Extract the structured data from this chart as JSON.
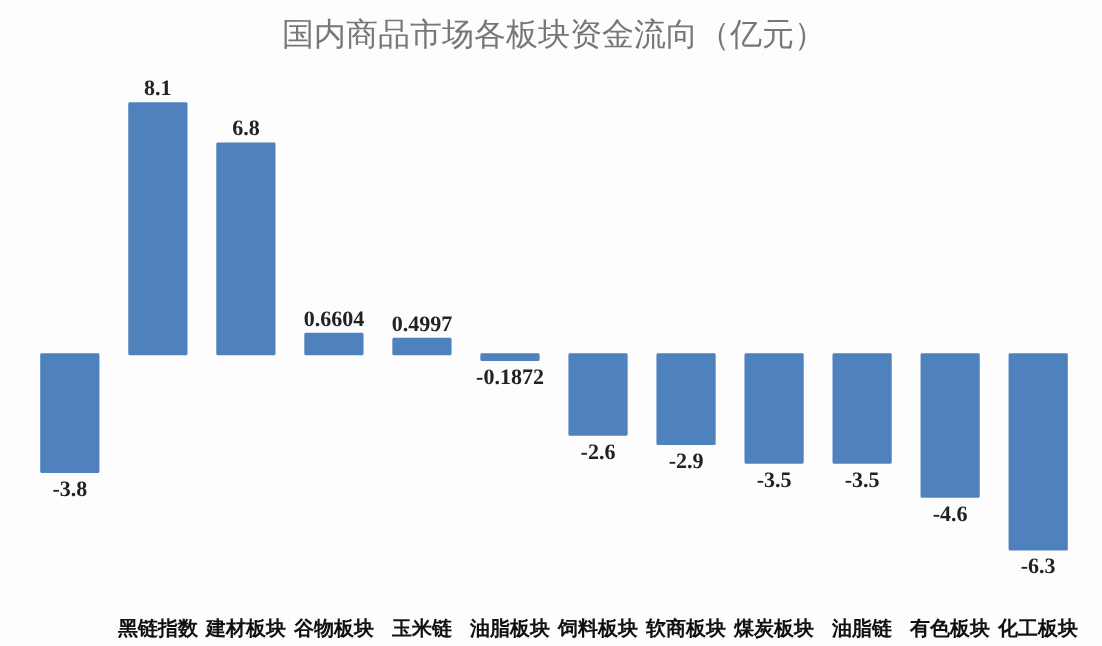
{
  "chart_data": {
    "type": "bar",
    "title": "国内商品市场各板块资金流向（亿元）",
    "categories": [
      null,
      "黑链指数",
      "建材板块",
      "谷物板块",
      "玉米链",
      "油脂板块",
      "饲料板块",
      "软商板块",
      "煤炭板块",
      "油脂链",
      "有色板块",
      "化工板块"
    ],
    "values": [
      -3.8,
      8.1,
      6.8,
      0.6604,
      0.4997,
      -0.1872,
      -2.6,
      -2.9,
      -3.5,
      -3.5,
      -4.6,
      -6.3
    ],
    "color": "#4f81bd",
    "data_labels": true,
    "grid": false
  }
}
